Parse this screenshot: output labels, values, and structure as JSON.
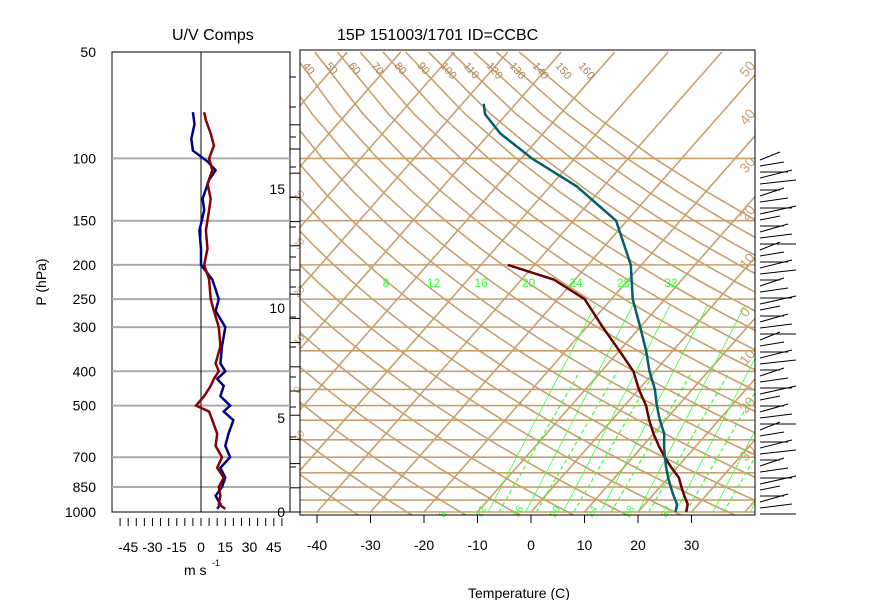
{
  "chart_data": [
    {
      "type": "line",
      "title": "U/V Comps",
      "xlabel": "m s",
      "xlabel_sup": "-1",
      "ylabel": "P (hPa)",
      "xlim": [
        -55,
        55
      ],
      "ylim": [
        1000,
        50
      ],
      "yscale": "log",
      "x_ticks": [
        "-45",
        "-30",
        "-15",
        "0",
        "15",
        "30",
        "45"
      ],
      "x_tick_values": [
        -45,
        -30,
        -15,
        0,
        15,
        30,
        45
      ],
      "y_ticks": [
        "50",
        "100",
        "150",
        "200",
        "250",
        "300",
        "400",
        "500",
        "700",
        "850",
        "1000"
      ],
      "y_tick_values": [
        50,
        100,
        150,
        200,
        250,
        300,
        400,
        500,
        700,
        850,
        1000
      ],
      "series": [
        {
          "color": "#00008b",
          "values": [
            [
              10,
              980
            ],
            [
              12,
              950
            ],
            [
              9,
              900
            ],
            [
              13,
              850
            ],
            [
              15,
              800
            ],
            [
              12,
              750
            ],
            [
              18,
              700
            ],
            [
              15,
              650
            ],
            [
              17,
              600
            ],
            [
              20,
              550
            ],
            [
              14,
              520
            ],
            [
              18,
              500
            ],
            [
              12,
              470
            ],
            [
              14,
              440
            ],
            [
              10,
              420
            ],
            [
              15,
              400
            ],
            [
              12,
              380
            ],
            [
              13,
              340
            ],
            [
              15,
              300
            ],
            [
              9,
              270
            ],
            [
              11,
              250
            ],
            [
              7,
              220
            ],
            [
              0,
              200
            ],
            [
              0,
              180
            ],
            [
              -1,
              160
            ],
            [
              2,
              140
            ],
            [
              1,
              130
            ],
            [
              5,
              115
            ],
            [
              9,
              108
            ],
            [
              4,
              102
            ],
            [
              -5,
              95
            ],
            [
              -6,
              88
            ],
            [
              -4,
              80
            ],
            [
              -5,
              74
            ]
          ]
        },
        {
          "color": "#8b0000",
          "values": [
            [
              15,
              980
            ],
            [
              11,
              950
            ],
            [
              12,
              900
            ],
            [
              11,
              850
            ],
            [
              14,
              800
            ],
            [
              10,
              750
            ],
            [
              13,
              700
            ],
            [
              9,
              650
            ],
            [
              10,
              600
            ],
            [
              7,
              550
            ],
            [
              5,
              520
            ],
            [
              -3,
              500
            ],
            [
              2,
              470
            ],
            [
              6,
              440
            ],
            [
              8,
              420
            ],
            [
              11,
              400
            ],
            [
              9,
              380
            ],
            [
              12,
              340
            ],
            [
              11,
              300
            ],
            [
              8,
              270
            ],
            [
              6,
              250
            ],
            [
              5,
              220
            ],
            [
              2,
              200
            ],
            [
              4,
              180
            ],
            [
              3,
              160
            ],
            [
              5,
              140
            ],
            [
              6,
              130
            ],
            [
              4,
              118
            ],
            [
              7,
              108
            ],
            [
              5,
              100
            ],
            [
              8,
              92
            ],
            [
              6,
              85
            ],
            [
              3,
              78
            ],
            [
              2,
              74
            ]
          ]
        }
      ]
    },
    {
      "type": "line",
      "title": "15P 151003/1701 ID=CCBC",
      "xlabel": "Temperature (C)",
      "xlim": [
        -40,
        40
      ],
      "x_ticks": [
        "-40",
        "-30",
        "-20",
        "-10",
        "0",
        "10",
        "20",
        "30"
      ],
      "x_tick_values": [
        -40,
        -30,
        -20,
        -10,
        0,
        10,
        20,
        30
      ],
      "height_ticks": [
        "0",
        "5",
        "10",
        "15"
      ],
      "mixing_ratio_labels": [
        "8",
        "12",
        "16",
        "20",
        "24",
        "28",
        "32"
      ],
      "dry_adiabat_labels": [
        "40",
        "50",
        "60",
        "70",
        "80",
        "90",
        "100",
        "110",
        "120",
        "130",
        "140",
        "150",
        "160"
      ],
      "isotherm_labels": [
        "50",
        "40",
        "30",
        "20",
        "10",
        "0",
        "10",
        "20",
        "30"
      ],
      "left_isotherm_labels": [
        "40",
        "30",
        "20",
        "10",
        "0",
        "10"
      ],
      "moist_labels": [
        "8",
        "12",
        "16",
        "20",
        "24",
        "28",
        "32"
      ],
      "series": [
        {
          "name": "temperature",
          "color": "#6b0000",
          "points": [
            [
              29,
              1000
            ],
            [
              28,
              950
            ],
            [
              26,
              900
            ],
            [
              24,
              850
            ],
            [
              22,
              800
            ],
            [
              19,
              750
            ],
            [
              16,
              700
            ],
            [
              13,
              650
            ],
            [
              10,
              600
            ],
            [
              7,
              550
            ],
            [
              4,
              500
            ],
            [
              0,
              450
            ],
            [
              -4,
              400
            ],
            [
              -10,
              350
            ],
            [
              -17,
              300
            ],
            [
              -25,
              250
            ],
            [
              -34,
              220
            ],
            [
              -45,
              200
            ]
          ]
        },
        {
          "name": "dewpoint",
          "color": "#005f6b",
          "points": [
            [
              27,
              1000
            ],
            [
              26,
              950
            ],
            [
              24,
              900
            ],
            [
              22,
              850
            ],
            [
              20,
              800
            ],
            [
              18,
              750
            ],
            [
              16,
              700
            ],
            [
              14,
              650
            ],
            [
              12,
              600
            ],
            [
              9,
              550
            ],
            [
              6,
              500
            ],
            [
              3,
              450
            ],
            [
              -1,
              400
            ],
            [
              -5,
              350
            ],
            [
              -10,
              300
            ],
            [
              -16,
              250
            ],
            [
              -22,
              200
            ],
            [
              -32,
              150
            ],
            [
              -45,
              120
            ],
            [
              -58,
              100
            ],
            [
              -68,
              85
            ],
            [
              -74,
              75
            ],
            [
              -76,
              70
            ]
          ]
        }
      ],
      "colors": {
        "background_lines": "#c8a06e",
        "moist_lines": "#33ff33",
        "barbs": "#000000"
      }
    }
  ]
}
